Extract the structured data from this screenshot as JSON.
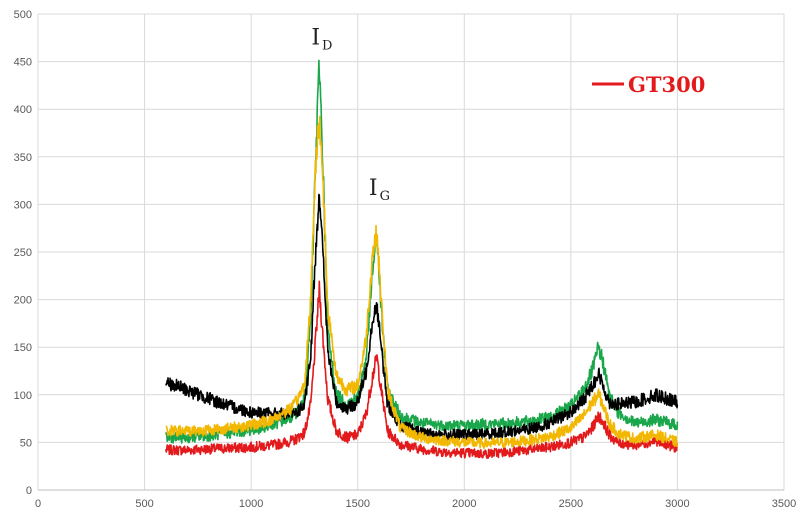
{
  "chart_data": {
    "type": "line",
    "xlim": [
      0,
      3500
    ],
    "ylim": [
      0,
      500
    ],
    "x_ticks": [
      0,
      500,
      1000,
      1500,
      2000,
      2500,
      3000,
      3500
    ],
    "y_ticks": [
      0,
      50,
      100,
      150,
      200,
      250,
      300,
      350,
      400,
      450,
      500
    ],
    "grid": true,
    "legend": {
      "placement": "top-right",
      "visible_entries": [
        "GT300"
      ]
    },
    "annotations": [
      {
        "main": "I",
        "sub": "D",
        "x": 1320,
        "y": 468
      },
      {
        "main": "I",
        "sub": "G",
        "x": 1590,
        "y": 310
      }
    ],
    "series": [
      {
        "name": "GT300",
        "color": "#e31a1c",
        "x": [
          600,
          700,
          800,
          900,
          1000,
          1100,
          1200,
          1250,
          1280,
          1300,
          1320,
          1340,
          1360,
          1400,
          1450,
          1500,
          1540,
          1570,
          1590,
          1610,
          1640,
          1700,
          1800,
          1900,
          2000,
          2100,
          2200,
          2300,
          2400,
          2500,
          2560,
          2600,
          2630,
          2650,
          2680,
          2720,
          2800,
          2900,
          3000
        ],
        "y": [
          42,
          42,
          43,
          44,
          45,
          47,
          52,
          60,
          90,
          150,
          210,
          150,
          95,
          62,
          55,
          58,
          80,
          120,
          140,
          105,
          62,
          48,
          43,
          40,
          39,
          38,
          40,
          42,
          45,
          50,
          55,
          65,
          78,
          72,
          58,
          50,
          47,
          52,
          44
        ]
      },
      {
        "color": "#1aa64a",
        "x": [
          600,
          700,
          800,
          900,
          1000,
          1100,
          1200,
          1250,
          1280,
          1300,
          1320,
          1340,
          1360,
          1400,
          1450,
          1500,
          1540,
          1570,
          1590,
          1610,
          1640,
          1700,
          1800,
          1900,
          2000,
          2100,
          2200,
          2300,
          2400,
          2500,
          2560,
          2600,
          2630,
          2650,
          2680,
          2720,
          2800,
          2900,
          3000
        ],
        "y": [
          55,
          55,
          57,
          60,
          63,
          68,
          78,
          95,
          180,
          330,
          450,
          320,
          165,
          100,
          90,
          98,
          140,
          230,
          270,
          190,
          105,
          78,
          70,
          68,
          68,
          69,
          70,
          72,
          76,
          88,
          105,
          125,
          150,
          135,
          100,
          82,
          70,
          74,
          68
        ]
      },
      {
        "color": "#000000",
        "x": [
          600,
          700,
          800,
          900,
          1000,
          1100,
          1200,
          1250,
          1280,
          1300,
          1320,
          1340,
          1360,
          1400,
          1450,
          1500,
          1540,
          1570,
          1590,
          1610,
          1640,
          1700,
          1800,
          1900,
          2000,
          2100,
          2200,
          2300,
          2400,
          2500,
          2560,
          2600,
          2630,
          2650,
          2680,
          2720,
          2800,
          2900,
          3000
        ],
        "y": [
          113,
          105,
          96,
          88,
          82,
          80,
          80,
          88,
          140,
          240,
          315,
          235,
          145,
          92,
          85,
          92,
          125,
          180,
          195,
          150,
          90,
          68,
          60,
          58,
          58,
          59,
          61,
          64,
          70,
          82,
          95,
          110,
          122,
          110,
          92,
          90,
          92,
          100,
          92
        ]
      },
      {
        "color": "#f2b700",
        "x": [
          600,
          700,
          800,
          900,
          1000,
          1100,
          1200,
          1250,
          1280,
          1300,
          1320,
          1340,
          1360,
          1400,
          1450,
          1500,
          1540,
          1570,
          1590,
          1610,
          1640,
          1700,
          1800,
          1900,
          2000,
          2100,
          2200,
          2300,
          2400,
          2500,
          2560,
          2600,
          2630,
          2650,
          2680,
          2720,
          2800,
          2900,
          3000
        ],
        "y": [
          62,
          62,
          63,
          65,
          68,
          74,
          88,
          110,
          200,
          330,
          395,
          310,
          190,
          120,
          105,
          110,
          160,
          250,
          270,
          200,
          105,
          65,
          55,
          52,
          50,
          49,
          50,
          52,
          56,
          65,
          78,
          92,
          100,
          90,
          70,
          60,
          54,
          58,
          50
        ]
      }
    ]
  }
}
